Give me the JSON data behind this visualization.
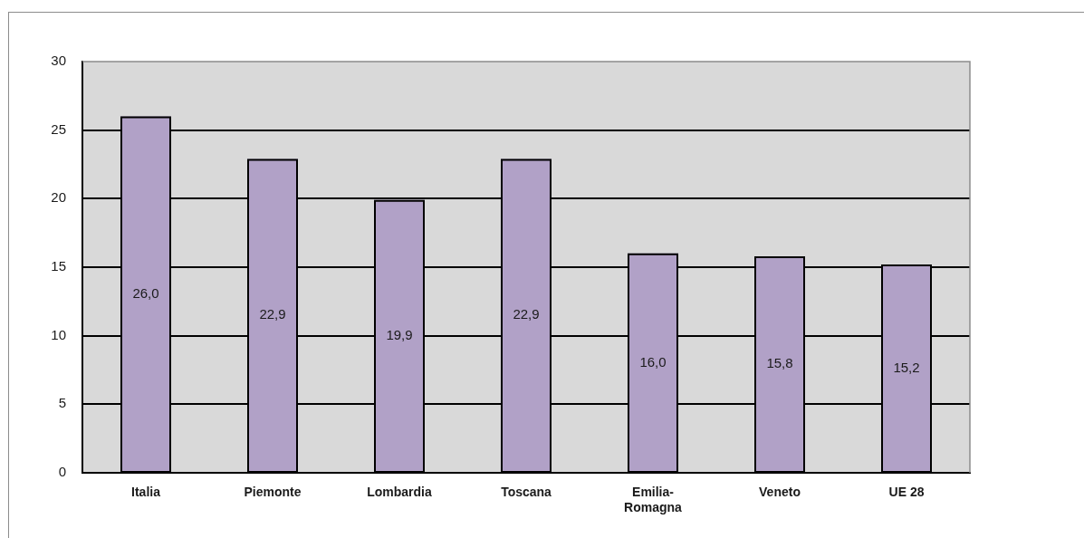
{
  "chart_data": {
    "type": "bar",
    "categories": [
      "Italia",
      "Piemonte",
      "Lombardia",
      "Toscana",
      "Emilia-Romagna",
      "Veneto",
      "UE 28"
    ],
    "values": [
      26.0,
      22.9,
      19.9,
      22.9,
      16.0,
      15.8,
      15.2
    ],
    "value_labels": [
      "26,0",
      "22,9",
      "19,9",
      "22,9",
      "16,0",
      "15,8",
      "15,2"
    ],
    "color": "#b1a1c7",
    "ylim": [
      0,
      30
    ],
    "yticks": [
      0,
      5,
      10,
      15,
      20,
      25,
      30
    ],
    "grid": "y"
  }
}
